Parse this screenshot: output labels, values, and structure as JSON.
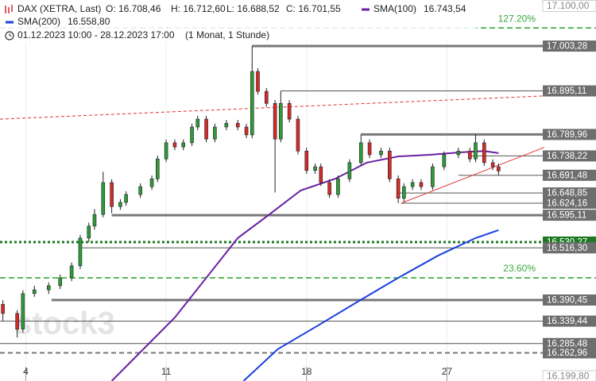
{
  "chart_data": {
    "type": "candlestick",
    "header": {
      "symbol": "DAX (XETRA, Last)",
      "ohlc": [
        "O: 16.708,46",
        "H: 16.712,60",
        "L: 16.688,52",
        "C: 16.701,55"
      ],
      "range": "01.12.2023 10:00 - 28.12.2023 17:00",
      "period": "(1 Monat, 1 Stunde)"
    },
    "watermark": "stock3",
    "xlim": [
      0,
      190
    ],
    "ylim": [
      16195,
      17114.5
    ],
    "xticks": [
      {
        "value": 9,
        "label": "4"
      },
      {
        "value": 58,
        "label": "11"
      },
      {
        "value": 107,
        "label": "18"
      },
      {
        "value": 156,
        "label": "27"
      }
    ],
    "yticks": [
      {
        "value": 17100,
        "label": "17.100,00"
      },
      {
        "value": 16199.8,
        "label": "16.199,80"
      }
    ],
    "up_color": "#2e9a3a",
    "down_color": "#d42a2a",
    "candles": {
      "x": [
        1,
        6,
        8,
        12,
        17,
        21,
        25,
        28,
        31,
        33,
        36,
        39,
        42,
        44,
        49,
        53,
        55,
        58,
        61,
        64,
        67,
        69,
        72,
        75,
        79,
        83,
        86,
        88,
        90,
        93,
        96,
        98,
        101,
        104,
        107,
        110,
        112,
        115,
        118,
        122,
        126,
        129,
        133,
        136,
        139,
        141,
        144,
        147,
        151,
        155,
        160,
        164,
        166,
        169,
        172,
        174
      ],
      "open": [
        16380,
        16358,
        16320,
        16406,
        16415,
        16425,
        16444,
        16473,
        16540,
        16569,
        16597,
        16674,
        16616,
        16626,
        16645,
        16664,
        16683,
        16731,
        16770,
        16760,
        16770,
        16808,
        16827,
        16779,
        16808,
        16817,
        16808,
        16789,
        16942,
        16894,
        16865,
        16779,
        16865,
        16827,
        16750,
        16703,
        16712,
        16674,
        16645,
        16683,
        16722,
        16770,
        16741,
        16750,
        16683,
        16636,
        16664,
        16674,
        16664,
        16712,
        16741,
        16750,
        16731,
        16770,
        16722,
        16712
      ],
      "high": [
        16390,
        16366,
        16414,
        16425,
        16433,
        16452,
        16481,
        16548,
        16577,
        16610,
        16700,
        16682,
        16634,
        16653,
        16672,
        16691,
        16739,
        16778,
        16778,
        16778,
        16816,
        16835,
        16835,
        16816,
        16825,
        16825,
        16816,
        17003,
        16950,
        16902,
        16873,
        16895,
        16873,
        16835,
        16758,
        16720,
        16720,
        16682,
        16691,
        16730,
        16790,
        16778,
        16758,
        16758,
        16691,
        16672,
        16682,
        16682,
        16720,
        16749,
        16758,
        16758,
        16790,
        16778,
        16730,
        16720
      ],
      "low": [
        16340,
        16300,
        16312,
        16398,
        16405,
        16417,
        16436,
        16465,
        16530,
        16560,
        16590,
        16600,
        16608,
        16618,
        16637,
        16656,
        16675,
        16723,
        16752,
        16752,
        16762,
        16800,
        16771,
        16771,
        16800,
        16800,
        16781,
        16781,
        16886,
        16857,
        16650,
        16771,
        16819,
        16742,
        16695,
        16695,
        16666,
        16637,
        16637,
        16675,
        16714,
        16733,
        16733,
        16675,
        16624,
        16628,
        16656,
        16656,
        16656,
        16704,
        16733,
        16723,
        16723,
        16714,
        16704,
        16691
      ],
      "close": [
        16358,
        16320,
        16406,
        16415,
        16425,
        16444,
        16473,
        16540,
        16569,
        16597,
        16674,
        16616,
        16626,
        16645,
        16664,
        16683,
        16731,
        16770,
        16760,
        16770,
        16808,
        16827,
        16779,
        16808,
        16817,
        16808,
        16789,
        16942,
        16894,
        16865,
        16779,
        16865,
        16827,
        16750,
        16703,
        16712,
        16674,
        16645,
        16683,
        16722,
        16770,
        16741,
        16750,
        16683,
        16636,
        16664,
        16674,
        16664,
        16712,
        16741,
        16750,
        16731,
        16770,
        16722,
        16712,
        16702
      ]
    },
    "series": [
      {
        "name": "SMA(100)",
        "last_label": "16.743,54",
        "color": "#6a1fa0",
        "x": [
          39,
          61,
          83,
          94,
          105,
          117,
          128,
          139,
          150,
          161,
          169,
          174
        ],
        "values": [
          16195,
          16348,
          16540,
          16597,
          16655,
          16683,
          16722,
          16737,
          16741,
          16747,
          16750,
          16745
        ]
      },
      {
        "name": "SMA(200)",
        "last_label": "16.558,80",
        "color": "#1a3fe0",
        "x": [
          85,
          97,
          111,
          125,
          139,
          153,
          166,
          174
        ],
        "values": [
          16195,
          16272,
          16329,
          16387,
          16444,
          16498,
          16540,
          16559
        ]
      }
    ],
    "levels": [
      {
        "value": 17003.28,
        "label": "17.003,28",
        "from": 88,
        "style": "thick"
      },
      {
        "value": 16895.11,
        "label": "16.895,11",
        "from": 98,
        "style": "thin"
      },
      {
        "value": 16789.96,
        "label": "16.789,96",
        "from": 126,
        "style": "thick"
      },
      {
        "value": 16738.22,
        "label": "16.738,22",
        "from": 164,
        "style": "thin"
      },
      {
        "value": 16691.48,
        "label": "16.691,48",
        "from": 160,
        "style": "thin"
      },
      {
        "value": 16648.85,
        "label": "16.648,85",
        "from": 139,
        "style": "thin"
      },
      {
        "value": 16624.16,
        "label": "16.624,16",
        "from": 140,
        "style": "thin"
      },
      {
        "value": 16595.11,
        "label": "16.595,11",
        "from": 39,
        "style": "thick"
      },
      {
        "value": 16530.27,
        "label": "16.530,27",
        "from": 0,
        "style": "dotted"
      },
      {
        "value": 16516.3,
        "label": "16.516,30",
        "from": 28,
        "style": "thin"
      },
      {
        "value": 16390.45,
        "label": "16.390,45",
        "from": 18,
        "style": "thick"
      },
      {
        "value": 16339.44,
        "label": "16.339,44",
        "from": 0,
        "style": "thin"
      },
      {
        "value": 16285.48,
        "label": "16.285,48",
        "from": 0,
        "style": "thin"
      },
      {
        "value": 16262.96,
        "label": "16.262,96",
        "from": 0,
        "style": "dashed"
      }
    ],
    "fibs": [
      {
        "value": 17047,
        "label": "127.20%"
      },
      {
        "value": 16444,
        "label": "23.60%"
      }
    ],
    "trendlines": [
      {
        "x": [
          0,
          190
        ],
        "values": [
          16827,
          16883
        ],
        "style": "dotted"
      },
      {
        "x": [
          140,
          190
        ],
        "values": [
          16624,
          16759
        ],
        "style": "solid"
      }
    ]
  }
}
